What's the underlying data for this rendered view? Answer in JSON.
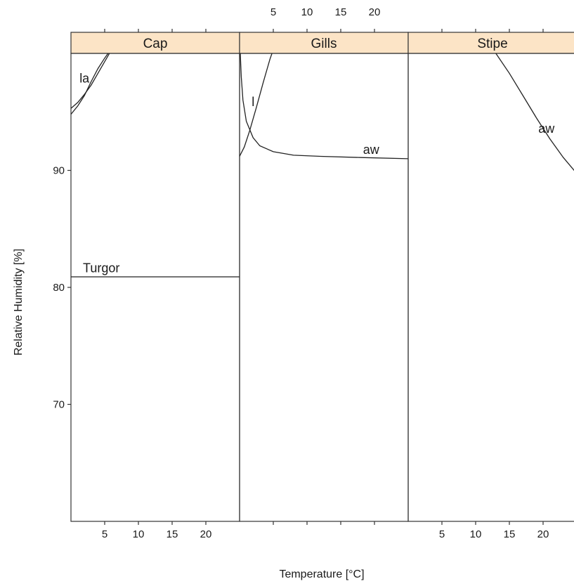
{
  "chart_data": {
    "type": "line",
    "layout": "trellis-panels",
    "xlabel": "Temperature [°C]",
    "ylabel": "Relative Humidity [%]",
    "xlim": [
      0,
      25
    ],
    "ylim": [
      60,
      100
    ],
    "x_ticks": [
      5,
      10,
      15,
      20
    ],
    "y_ticks": [
      70,
      80,
      90
    ],
    "grid": false,
    "legend": "none",
    "panels": [
      {
        "name": "Cap",
        "x_axis_position": "bottom",
        "series": [
          {
            "label": "la",
            "label_at": {
              "x": 2.0,
              "y": 97.5
            },
            "points": [
              [
                0,
                95.3
              ],
              [
                1,
                95.8
              ],
              [
                2,
                96.5
              ],
              [
                3,
                97.3
              ],
              [
                4,
                98.3
              ],
              [
                5,
                99.3
              ],
              [
                5.7,
                100
              ]
            ]
          },
          {
            "label": "",
            "label_at": null,
            "points": [
              [
                0,
                94.8
              ],
              [
                1,
                95.5
              ],
              [
                2,
                96.4
              ],
              [
                3,
                97.6
              ],
              [
                4,
                98.7
              ],
              [
                5,
                99.6
              ],
              [
                5.5,
                100
              ]
            ]
          },
          {
            "label": "Turgor",
            "label_at": {
              "x": 4.5,
              "y": 81.3
            },
            "points": [
              [
                0,
                80.9
              ],
              [
                25,
                80.9
              ]
            ]
          }
        ]
      },
      {
        "name": "Gills",
        "x_axis_position": "top",
        "series": [
          {
            "label": "l",
            "label_at": {
              "x": 2.0,
              "y": 95.5
            },
            "points": [
              [
                0,
                91.2
              ],
              [
                0.7,
                92.0
              ],
              [
                1.5,
                93.4
              ],
              [
                2.5,
                95.4
              ],
              [
                3.5,
                97.5
              ],
              [
                4.5,
                99.5
              ],
              [
                4.8,
                100
              ]
            ]
          },
          {
            "label": "aw",
            "label_at": {
              "x": 19.5,
              "y": 91.4
            },
            "points": [
              [
                0.1,
                100
              ],
              [
                0.25,
                98.0
              ],
              [
                0.5,
                96.0
              ],
              [
                1,
                94.2
              ],
              [
                2,
                92.8
              ],
              [
                3,
                92.1
              ],
              [
                5,
                91.6
              ],
              [
                8,
                91.3
              ],
              [
                12,
                91.2
              ],
              [
                18,
                91.1
              ],
              [
                25,
                91.0
              ]
            ]
          }
        ]
      },
      {
        "name": "Stipe",
        "x_axis_position": "bottom",
        "series": [
          {
            "label": "aw",
            "label_at": {
              "x": 20.5,
              "y": 93.2
            },
            "points": [
              [
                13,
                100
              ],
              [
                15,
                98.3
              ],
              [
                17,
                96.4
              ],
              [
                19,
                94.5
              ],
              [
                21,
                92.7
              ],
              [
                23,
                91.1
              ],
              [
                24.9,
                89.8
              ]
            ]
          }
        ]
      }
    ]
  }
}
